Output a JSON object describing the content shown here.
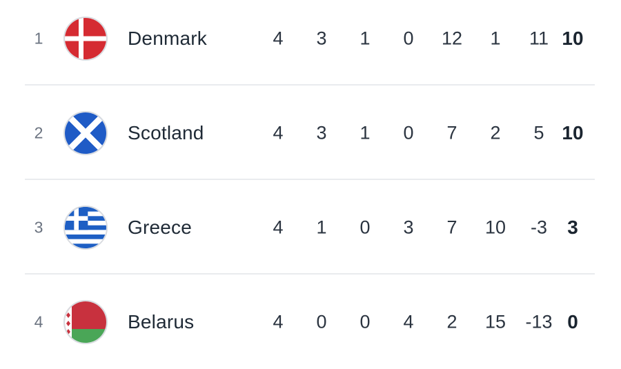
{
  "standings": {
    "rows": [
      {
        "rank": "1",
        "team": "Denmark",
        "flag_icon": "denmark-flag-icon",
        "played": "4",
        "won": "3",
        "drawn": "1",
        "lost": "0",
        "goals_for": "12",
        "goals_against": "1",
        "goal_diff": "11",
        "points": "10"
      },
      {
        "rank": "2",
        "team": "Scotland",
        "flag_icon": "scotland-flag-icon",
        "played": "4",
        "won": "3",
        "drawn": "1",
        "lost": "0",
        "goals_for": "7",
        "goals_against": "2",
        "goal_diff": "5",
        "points": "10"
      },
      {
        "rank": "3",
        "team": "Greece",
        "flag_icon": "greece-flag-icon",
        "played": "4",
        "won": "1",
        "drawn": "0",
        "lost": "3",
        "goals_for": "7",
        "goals_against": "10",
        "goal_diff": "-3",
        "points": "3"
      },
      {
        "rank": "4",
        "team": "Belarus",
        "flag_icon": "belarus-flag-icon",
        "played": "4",
        "won": "0",
        "drawn": "0",
        "lost": "4",
        "goals_for": "2",
        "goals_against": "15",
        "goal_diff": "-13",
        "points": "0"
      }
    ],
    "colors": {
      "text": "#2b3440",
      "muted": "#6b7380",
      "divider": "#e9ebee"
    }
  }
}
